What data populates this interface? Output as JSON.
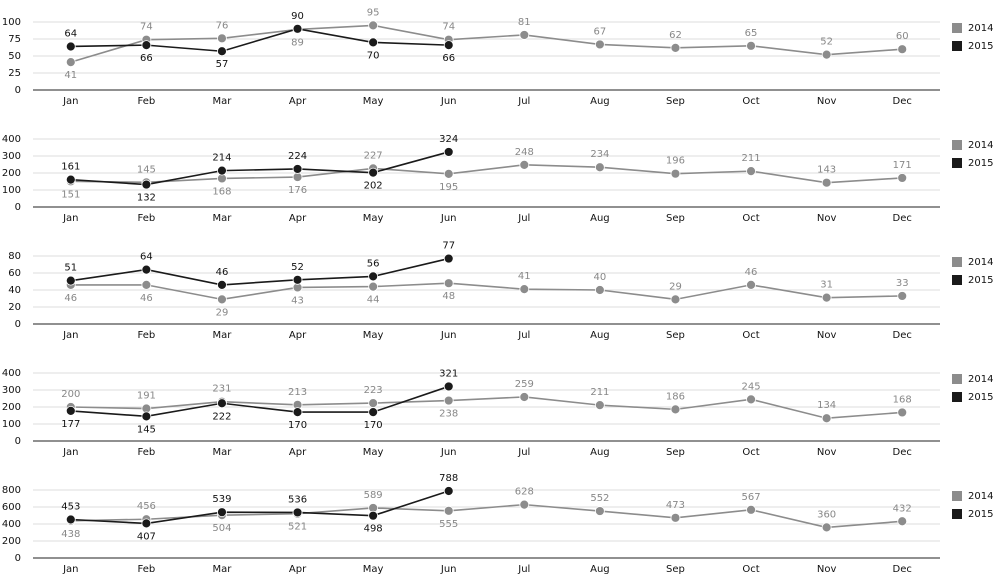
{
  "chart_data": [
    {
      "type": "line",
      "categories": [
        "Jan",
        "Feb",
        "Mar",
        "Apr",
        "May",
        "Jun",
        "Jul",
        "Aug",
        "Sep",
        "Oct",
        "Nov",
        "Dec"
      ],
      "ylim": [
        0,
        100
      ],
      "yticks": [
        0,
        25,
        50,
        75,
        100
      ],
      "grid": true,
      "series": [
        {
          "name": "2014",
          "color": "#8c8c8c",
          "values": [
            41,
            74,
            76,
            89,
            95,
            74,
            81,
            67,
            62,
            65,
            52,
            60
          ]
        },
        {
          "name": "2015",
          "color": "#1a1a1a",
          "values": [
            64,
            66,
            57,
            90,
            70,
            66,
            null,
            null,
            null,
            null,
            null,
            null
          ]
        }
      ]
    },
    {
      "type": "line",
      "categories": [
        "Jan",
        "Feb",
        "Mar",
        "Apr",
        "May",
        "Jun",
        "Jul",
        "Aug",
        "Sep",
        "Oct",
        "Nov",
        "Dec"
      ],
      "ylim": [
        0,
        400
      ],
      "yticks": [
        0,
        100,
        200,
        300,
        400
      ],
      "grid": true,
      "series": [
        {
          "name": "2014",
          "color": "#8c8c8c",
          "values": [
            151,
            145,
            168,
            176,
            227,
            195,
            248,
            234,
            196,
            211,
            143,
            171
          ]
        },
        {
          "name": "2015",
          "color": "#1a1a1a",
          "values": [
            161,
            132,
            214,
            224,
            202,
            324,
            null,
            null,
            null,
            null,
            null,
            null
          ]
        }
      ]
    },
    {
      "type": "line",
      "categories": [
        "Jan",
        "Feb",
        "Mar",
        "Apr",
        "May",
        "Jun",
        "Jul",
        "Aug",
        "Sep",
        "Oct",
        "Nov",
        "Dec"
      ],
      "ylim": [
        0,
        80
      ],
      "yticks": [
        0,
        20,
        40,
        60,
        80
      ],
      "grid": true,
      "series": [
        {
          "name": "2014",
          "color": "#8c8c8c",
          "values": [
            46,
            46,
            29,
            43,
            44,
            48,
            41,
            40,
            29,
            46,
            31,
            33
          ]
        },
        {
          "name": "2015",
          "color": "#1a1a1a",
          "values": [
            51,
            64,
            46,
            52,
            56,
            77,
            null,
            null,
            null,
            null,
            null,
            null
          ]
        }
      ]
    },
    {
      "type": "line",
      "categories": [
        "Jan",
        "Feb",
        "Mar",
        "Apr",
        "May",
        "Jun",
        "Jul",
        "Aug",
        "Sep",
        "Oct",
        "Nov",
        "Dec"
      ],
      "ylim": [
        0,
        400
      ],
      "yticks": [
        0,
        100,
        200,
        300,
        400
      ],
      "grid": true,
      "series": [
        {
          "name": "2014",
          "color": "#8c8c8c",
          "values": [
            200,
            191,
            231,
            213,
            223,
            238,
            259,
            211,
            186,
            245,
            134,
            168
          ]
        },
        {
          "name": "2015",
          "color": "#1a1a1a",
          "values": [
            177,
            145,
            222,
            170,
            170,
            321,
            null,
            null,
            null,
            null,
            null,
            null
          ]
        }
      ]
    },
    {
      "type": "line",
      "categories": [
        "Jan",
        "Feb",
        "Mar",
        "Apr",
        "May",
        "Jun",
        "Jul",
        "Aug",
        "Sep",
        "Oct",
        "Nov",
        "Dec"
      ],
      "ylim": [
        0,
        800
      ],
      "yticks": [
        0,
        200,
        400,
        600,
        800
      ],
      "grid": true,
      "series": [
        {
          "name": "2014",
          "color": "#8c8c8c",
          "values": [
            438,
            456,
            504,
            521,
            589,
            555,
            628,
            552,
            473,
            567,
            360,
            432
          ]
        },
        {
          "name": "2015",
          "color": "#1a1a1a",
          "values": [
            453,
            407,
            539,
            536,
            498,
            788,
            null,
            null,
            null,
            null,
            null,
            null
          ]
        }
      ]
    }
  ]
}
